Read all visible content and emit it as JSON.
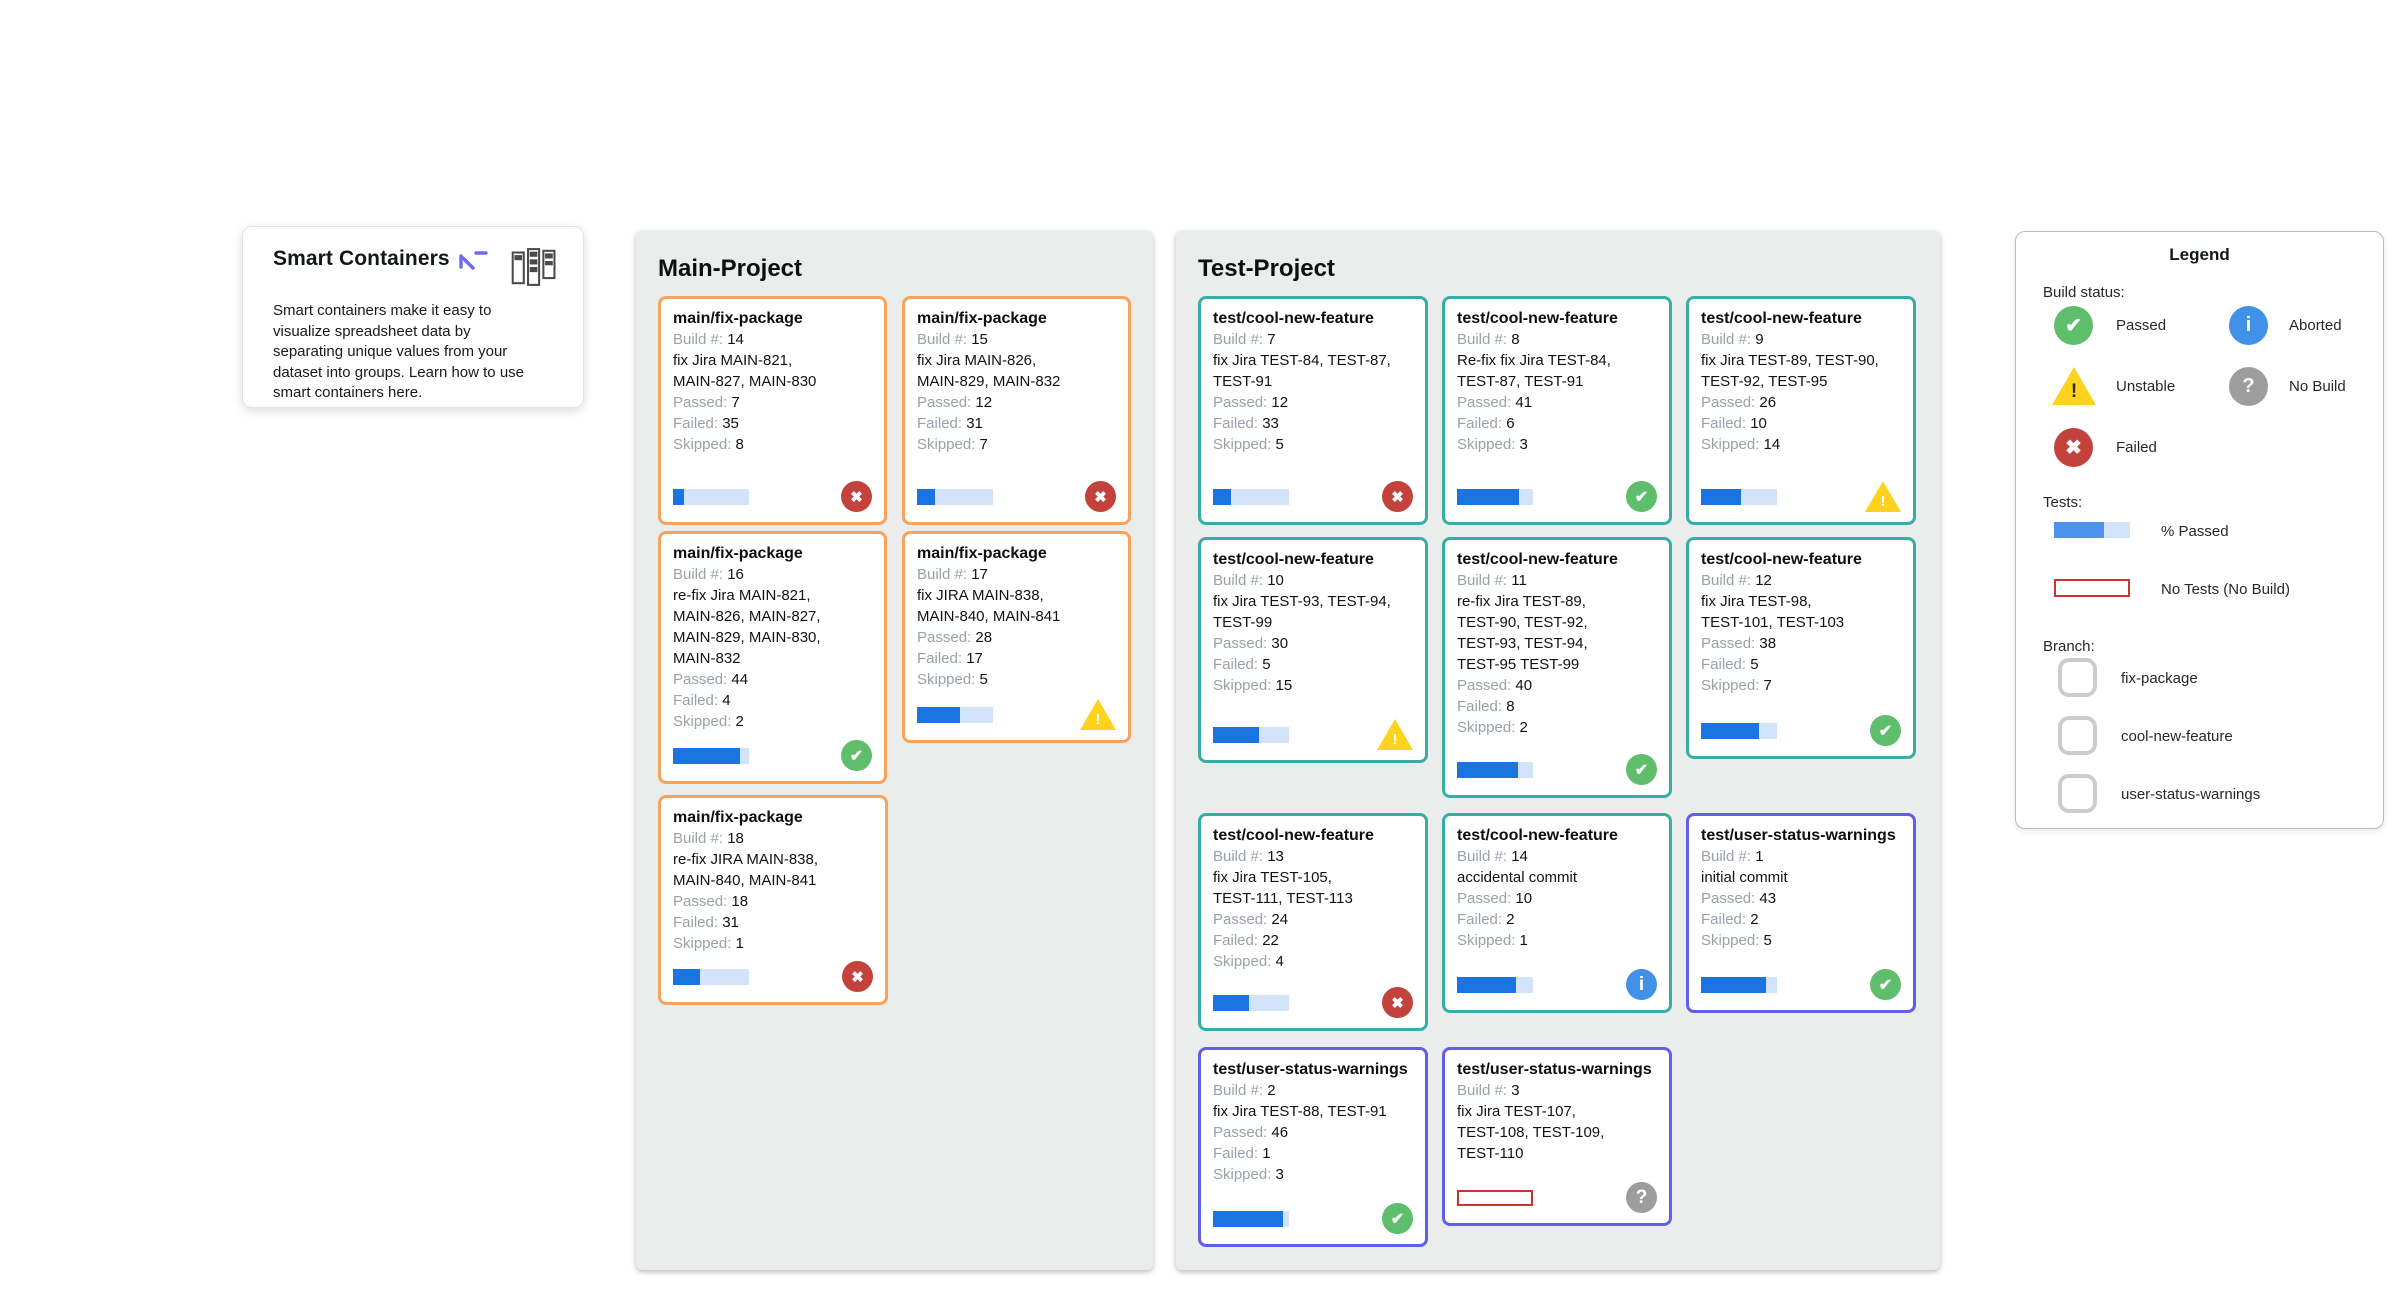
{
  "smart_containers": {
    "title": "Smart Containers",
    "body": "Smart containers make it easy to visualize spreadsheet data by separating unique values from your dataset into groups. Learn how to use smart containers here.",
    "icons": {
      "cursor": "select-arrow-icon",
      "header": "kanban-containers-icon"
    }
  },
  "labels": {
    "build": "Build #:",
    "passed": "Passed:",
    "failed": "Failed:",
    "skipped": "Skipped:"
  },
  "projects": [
    {
      "title": "Main-Project",
      "rows": [
        [
          {
            "branch": "fix-package",
            "title": "main/fix-package",
            "build": "14",
            "message": "fix Jira MAIN-821,\nMAIN-827, MAIN-830",
            "passed": "7",
            "failed": "35",
            "skipped": "8",
            "status": "failed",
            "percent": 14
          },
          {
            "branch": "fix-package",
            "title": "main/fix-package",
            "build": "15",
            "message": "fix Jira MAIN-826,\nMAIN-829, MAIN-832",
            "passed": "12",
            "failed": "31",
            "skipped": "7",
            "status": "failed",
            "percent": 24
          }
        ],
        [
          {
            "branch": "fix-package",
            "title": "main/fix-package",
            "build": "16",
            "message": "re-fix Jira MAIN-821,\nMAIN-826, MAIN-827,\nMAIN-829, MAIN-830,\nMAIN-832",
            "passed": "44",
            "failed": "4",
            "skipped": "2",
            "status": "passed",
            "percent": 88
          },
          {
            "branch": "fix-package",
            "title": "main/fix-package",
            "build": "17",
            "message": "fix JIRA MAIN-838,\nMAIN-840, MAIN-841",
            "passed": "28",
            "failed": "17",
            "skipped": "5",
            "status": "unstable",
            "percent": 56
          }
        ],
        [
          {
            "branch": "fix-package",
            "title": "main/fix-package",
            "build": "18",
            "message": "re-fix JIRA MAIN-838,\nMAIN-840, MAIN-841",
            "passed": "18",
            "failed": "31",
            "skipped": "1",
            "status": "failed",
            "percent": 36
          }
        ]
      ]
    },
    {
      "title": "Test-Project",
      "rows": [
        [
          {
            "branch": "cool-new-feature",
            "title": "test/cool-new-feature",
            "build": "7",
            "message": "fix Jira TEST-84, TEST-87,\nTEST-91",
            "passed": "12",
            "failed": "33",
            "skipped": "5",
            "status": "failed",
            "percent": 24
          },
          {
            "branch": "cool-new-feature",
            "title": "test/cool-new-feature",
            "build": "8",
            "message": "Re-fix fix Jira TEST-84,\nTEST-87, TEST-91",
            "passed": "41",
            "failed": "6",
            "skipped": "3",
            "status": "passed",
            "percent": 82
          },
          {
            "branch": "cool-new-feature",
            "title": "test/cool-new-feature",
            "build": "9",
            "message": "fix Jira TEST-89, TEST-90,\nTEST-92, TEST-95",
            "passed": "26",
            "failed": "10",
            "skipped": "14",
            "status": "unstable",
            "percent": 52
          }
        ],
        [
          {
            "branch": "cool-new-feature",
            "title": "test/cool-new-feature",
            "build": "10",
            "message": "fix Jira TEST-93, TEST-94,\nTEST-99",
            "passed": "30",
            "failed": "5",
            "skipped": "15",
            "status": "unstable",
            "percent": 60
          },
          {
            "branch": "cool-new-feature",
            "title": "test/cool-new-feature",
            "build": "11",
            "message": "re-fix Jira TEST-89,\nTEST-90, TEST-92,\nTEST-93, TEST-94,\nTEST-95 TEST-99",
            "passed": "40",
            "failed": "8",
            "skipped": "2",
            "status": "passed",
            "percent": 80
          },
          {
            "branch": "cool-new-feature",
            "title": "test/cool-new-feature",
            "build": "12",
            "message": "fix Jira TEST-98,\nTEST-101, TEST-103",
            "passed": "38",
            "failed": "5",
            "skipped": "7",
            "status": "passed",
            "percent": 76
          }
        ],
        [
          {
            "branch": "cool-new-feature",
            "title": "test/cool-new-feature",
            "build": "13",
            "message": "fix Jira TEST-105,\nTEST-111, TEST-113",
            "passed": "24",
            "failed": "22",
            "skipped": "4",
            "status": "failed",
            "percent": 48
          },
          {
            "branch": "cool-new-feature",
            "title": "test/cool-new-feature",
            "build": "14",
            "message": "accidental commit",
            "passed": "10",
            "failed": "2",
            "skipped": "1",
            "status": "aborted",
            "percent": 77
          },
          {
            "branch": "user-status-warnings",
            "title": "test/user-status-warnings",
            "build": "1",
            "message": "initial commit",
            "passed": "43",
            "failed": "2",
            "skipped": "5",
            "status": "passed",
            "percent": 86
          }
        ],
        [
          {
            "branch": "user-status-warnings",
            "title": "test/user-status-warnings",
            "build": "2",
            "message": "fix Jira TEST-88, TEST-91",
            "passed": "46",
            "failed": "1",
            "skipped": "3",
            "status": "passed",
            "percent": 92
          },
          {
            "branch": "user-status-warnings",
            "title": "test/user-status-warnings",
            "build": "3",
            "message": "fix Jira TEST-107,\nTEST-108, TEST-109,\nTEST-110",
            "status": "nobuild",
            "no_tests": true
          }
        ]
      ]
    }
  ],
  "legend": {
    "title": "Legend",
    "build_status_label": "Build status:",
    "statuses": [
      {
        "status": "passed",
        "label": "Passed",
        "icon": "check-circle-icon"
      },
      {
        "status": "aborted",
        "label": "Aborted",
        "icon": "info-circle-icon"
      },
      {
        "status": "unstable",
        "label": "Unstable",
        "icon": "warning-triangle-icon"
      },
      {
        "status": "nobuild",
        "label": "No Build",
        "icon": "question-circle-icon"
      },
      {
        "status": "failed",
        "label": "Failed",
        "icon": "x-circle-icon"
      }
    ],
    "tests_label": "Tests:",
    "percent_passed_label": "% Passed",
    "percent_passed_value": 66,
    "no_tests_label": "No Tests (No Build)",
    "branch_label": "Branch:",
    "branches": [
      {
        "key": "fix-package",
        "name": "fix-package",
        "color": "#F7A35C"
      },
      {
        "key": "cool-new-feature",
        "name": "cool-new-feature",
        "color": "#38ADA6"
      },
      {
        "key": "user-status-warnings",
        "name": "user-status-warnings",
        "color": "#5F5FE8"
      }
    ]
  },
  "colors": {
    "passed": "#5FBE6B",
    "failed": "#C4423C",
    "unstable": "#FFD21E",
    "aborted": "#4191E9",
    "nobuild": "#9D9D9D",
    "bar_fill": "#1B75E0",
    "bar_track": "#D3E3F9",
    "no_tests_border": "#C9352E",
    "panel_background": "#EBECEC"
  }
}
